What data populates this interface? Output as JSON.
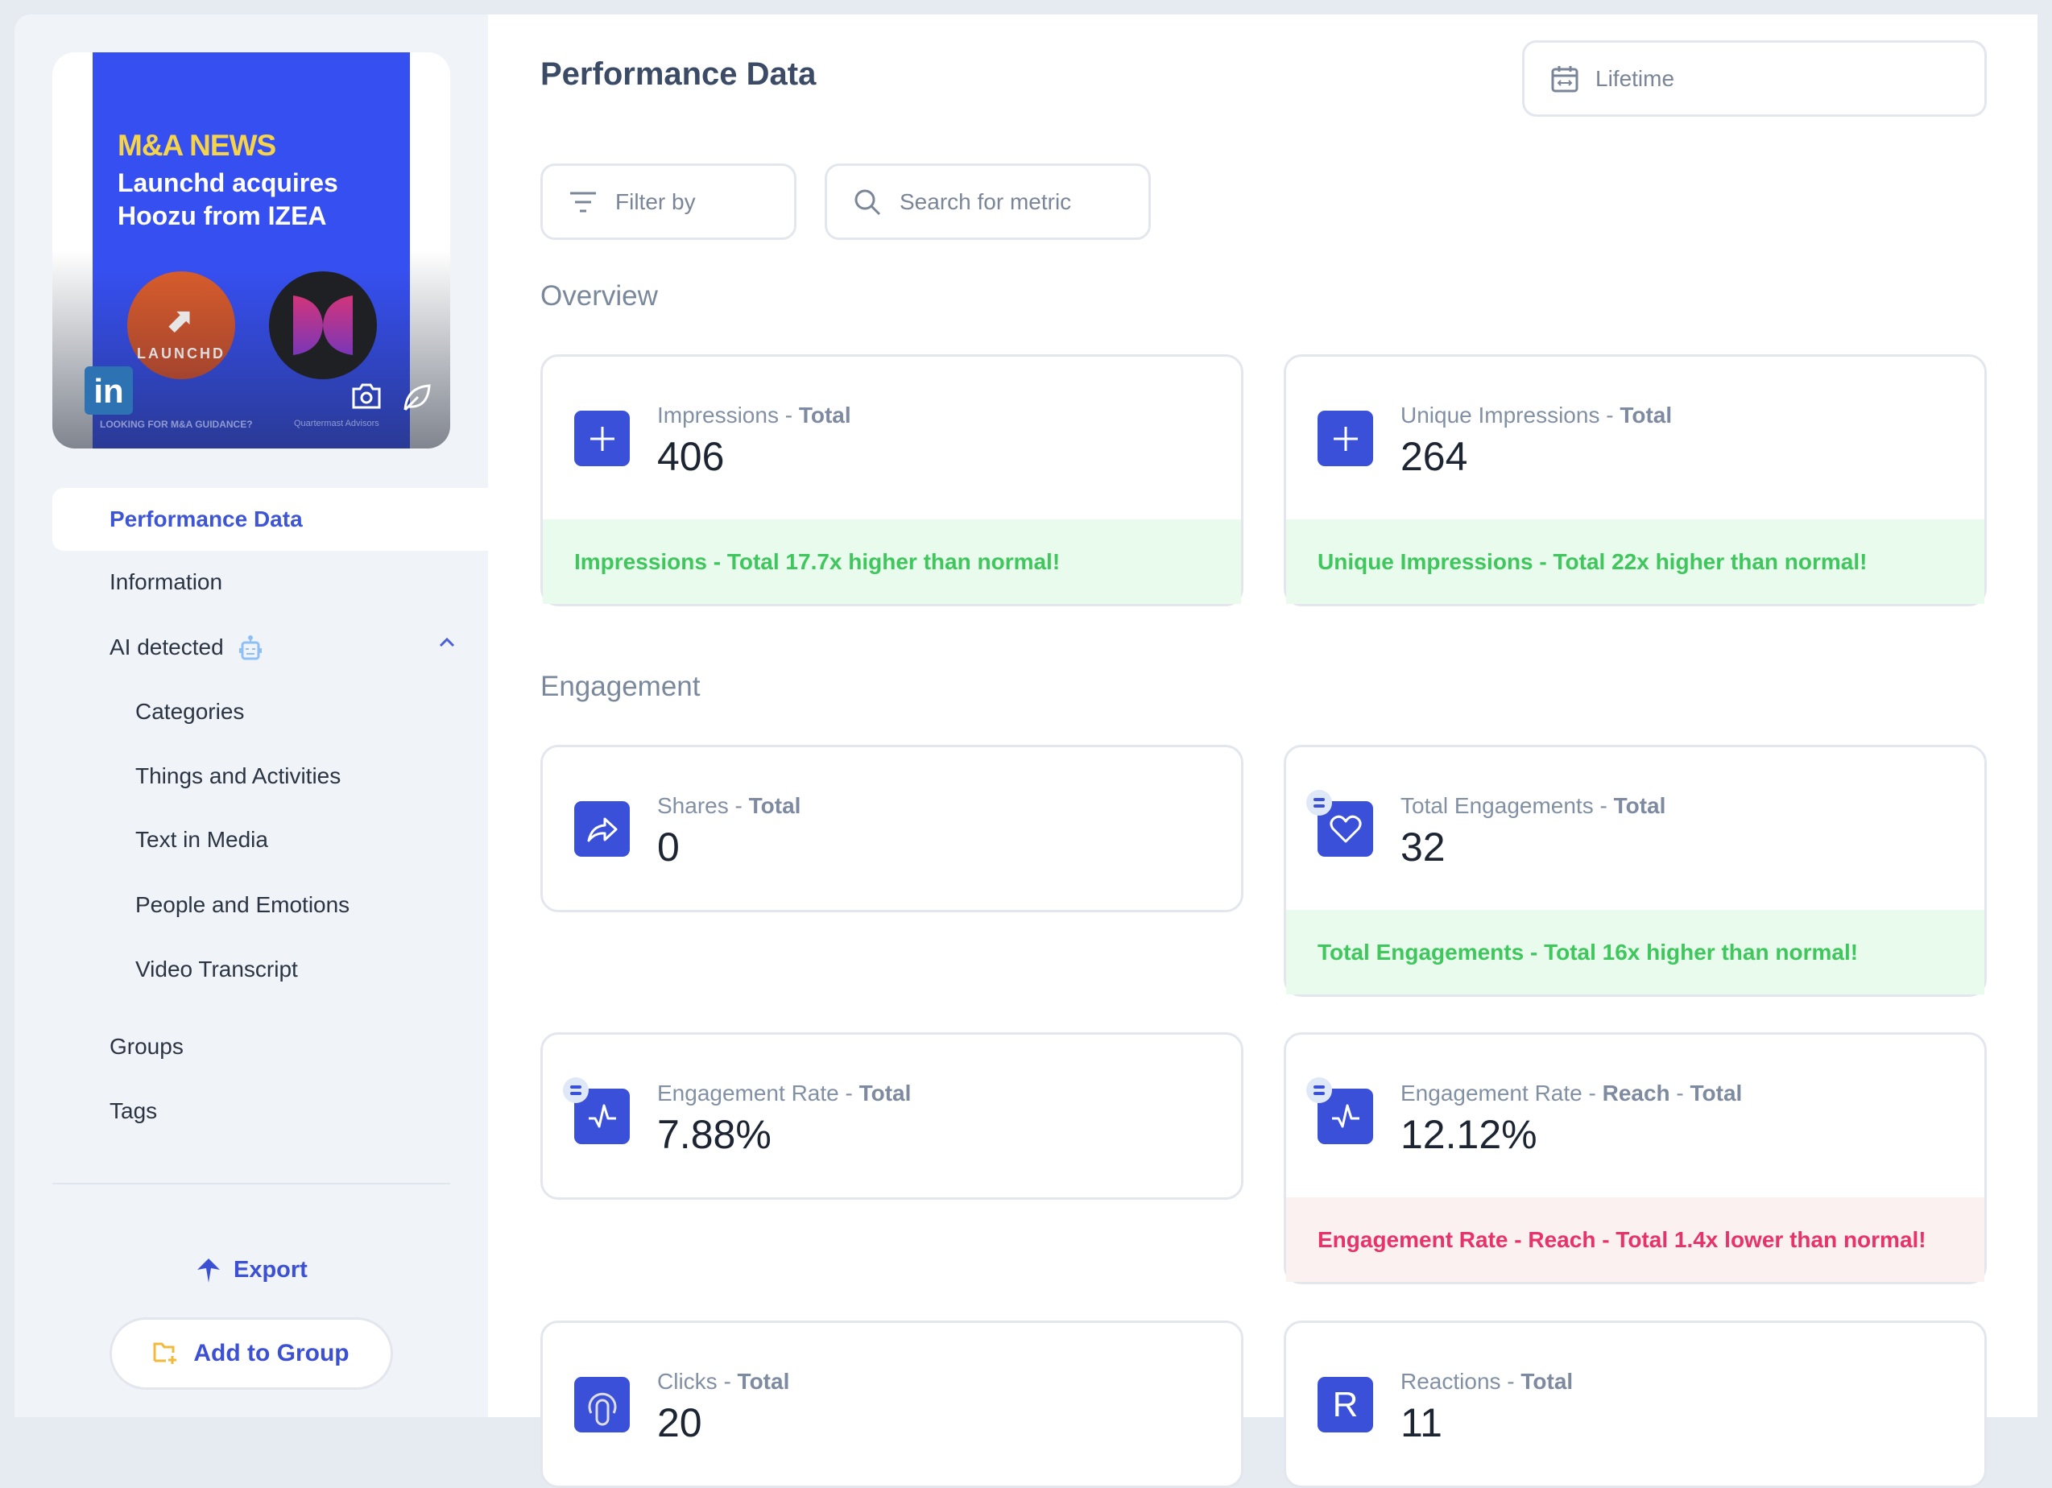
{
  "post": {
    "headline_kicker": "M&A NEWS",
    "headline": "Launchd  acquires Hoozu from IZEA",
    "logo1": "LAUNCHD",
    "footer": "LOOKING FOR M&A GUIDANCE?",
    "footer_brand": "Quartermast Advisors",
    "network": "in"
  },
  "sidebar": {
    "items": [
      {
        "label": "Performance Data",
        "active": true
      },
      {
        "label": "Information"
      },
      {
        "label": "AI detected"
      },
      {
        "label": "Categories"
      },
      {
        "label": "Things and Activities"
      },
      {
        "label": "Text in Media"
      },
      {
        "label": "People and Emotions"
      },
      {
        "label": "Video Transcript"
      },
      {
        "label": "Groups"
      },
      {
        "label": "Tags"
      }
    ],
    "export_label": "Export",
    "add_group_label": "Add to Group"
  },
  "header": {
    "title": "Performance Data",
    "date_range": "Lifetime",
    "filter_placeholder": "Filter by",
    "search_placeholder": "Search for metric"
  },
  "sections": {
    "overview": "Overview",
    "engagement": "Engagement"
  },
  "colors": {
    "accent": "#3a50d8",
    "positive": "#3fc65d",
    "negative": "#e8336a"
  },
  "cards": [
    {
      "icon": "plus-icon",
      "name": "Impressions",
      "suffix": "Total",
      "value": "406",
      "alert": "Impressions - Total 17.7x higher than normal!",
      "alert_type": "good"
    },
    {
      "icon": "plus-icon",
      "name": "Unique Impressions",
      "suffix": "Total",
      "value": "264",
      "alert": "Unique Impressions - Total 22x higher than normal!",
      "alert_type": "good"
    },
    {
      "icon": "share-icon",
      "name": "Shares",
      "suffix": "Total",
      "value": "0"
    },
    {
      "icon": "heart-icon",
      "badge": true,
      "name": "Total Engagements",
      "suffix": "Total",
      "value": "32",
      "alert": "Total Engagements - Total 16x higher than normal!",
      "alert_type": "good"
    },
    {
      "icon": "pulse-icon",
      "badge": true,
      "name": "Engagement Rate",
      "suffix": "Total",
      "value": "7.88%"
    },
    {
      "icon": "pulse-icon",
      "badge": true,
      "name": "Engagement Rate",
      "mid": "Reach",
      "suffix": "Total",
      "value": "12.12%",
      "alert": "Engagement Rate - Reach - Total 1.4x lower than normal!",
      "alert_type": "bad"
    },
    {
      "icon": "tap-icon",
      "name": "Clicks",
      "suffix": "Total",
      "value": "20"
    },
    {
      "icon": "reactions-icon",
      "glyph": "R",
      "name": "Reactions",
      "suffix": "Total",
      "value": "11"
    }
  ]
}
